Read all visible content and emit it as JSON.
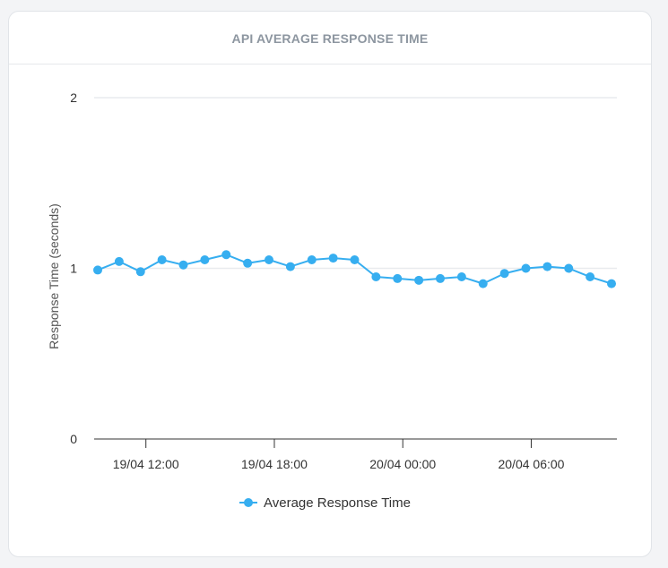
{
  "card": {
    "title": "API AVERAGE RESPONSE TIME"
  },
  "chart_data": {
    "type": "line",
    "title": "API AVERAGE RESPONSE TIME",
    "xlabel": "",
    "ylabel": "Response Time (seconds)",
    "ylim": [
      0,
      2
    ],
    "yticks": [
      0,
      1,
      2
    ],
    "xticks": [
      "19/04 12:00",
      "19/04 18:00",
      "20/04 00:00",
      "20/04 06:00"
    ],
    "x": [
      "19/04 09:45",
      "19/04 10:45",
      "19/04 11:45",
      "19/04 12:45",
      "19/04 13:45",
      "19/04 14:45",
      "19/04 15:45",
      "19/04 16:45",
      "19/04 17:45",
      "19/04 18:45",
      "19/04 19:45",
      "19/04 20:45",
      "19/04 21:45",
      "19/04 22:45",
      "19/04 23:45",
      "20/04 00:45",
      "20/04 01:45",
      "20/04 02:45",
      "20/04 03:45",
      "20/04 04:45",
      "20/04 05:45",
      "20/04 06:45",
      "20/04 07:45",
      "20/04 08:45",
      "20/04 09:45"
    ],
    "series": [
      {
        "name": "Average Response Time",
        "color": "#36aef0",
        "values": [
          0.99,
          1.04,
          0.98,
          1.05,
          1.02,
          1.05,
          1.08,
          1.03,
          1.05,
          1.01,
          1.05,
          1.06,
          1.05,
          0.95,
          0.94,
          0.93,
          0.94,
          0.95,
          0.91,
          0.97,
          1.0,
          1.01,
          1.0,
          0.95,
          0.91
        ]
      }
    ],
    "grid": true,
    "legend_position": "bottom"
  }
}
